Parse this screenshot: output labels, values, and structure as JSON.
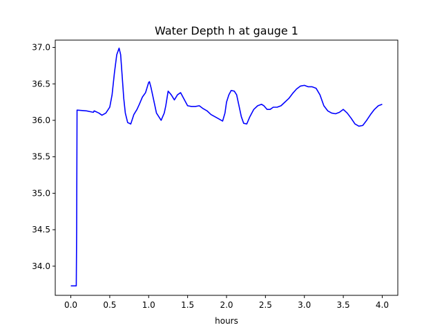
{
  "chart_data": {
    "type": "line",
    "title": "Water Depth h at gauge 1",
    "xlabel": "hours",
    "ylabel": "",
    "xlim": [
      -0.2,
      4.2
    ],
    "ylim": [
      33.6,
      37.1
    ],
    "xticks": [
      0.0,
      0.5,
      1.0,
      1.5,
      2.0,
      2.5,
      3.0,
      3.5,
      4.0
    ],
    "xtick_labels": [
      "0.0",
      "0.5",
      "1.0",
      "1.5",
      "2.0",
      "2.5",
      "3.0",
      "3.5",
      "4.0"
    ],
    "yticks": [
      34.0,
      34.5,
      35.0,
      35.5,
      36.0,
      36.5,
      37.0
    ],
    "ytick_labels": [
      "34.0",
      "34.5",
      "35.0",
      "35.5",
      "36.0",
      "36.5",
      "37.0"
    ],
    "grid": false,
    "series": [
      {
        "name": "",
        "color": "#0000ff",
        "x": [
          0.0,
          0.07,
          0.075,
          0.08,
          0.2,
          0.29,
          0.3,
          0.36,
          0.4,
          0.45,
          0.5,
          0.53,
          0.56,
          0.59,
          0.62,
          0.64,
          0.66,
          0.68,
          0.7,
          0.73,
          0.77,
          0.81,
          0.85,
          0.88,
          0.92,
          0.96,
          1.0,
          1.01,
          1.03,
          1.06,
          1.1,
          1.13,
          1.16,
          1.2,
          1.22,
          1.25,
          1.29,
          1.33,
          1.37,
          1.41,
          1.45,
          1.5,
          1.55,
          1.6,
          1.65,
          1.7,
          1.75,
          1.8,
          1.85,
          1.9,
          1.95,
          1.98,
          2.0,
          2.03,
          2.06,
          2.1,
          2.13,
          2.16,
          2.19,
          2.22,
          2.26,
          2.3,
          2.35,
          2.4,
          2.45,
          2.48,
          2.52,
          2.56,
          2.6,
          2.65,
          2.7,
          2.75,
          2.8,
          2.85,
          2.9,
          2.95,
          3.0,
          3.05,
          3.1,
          3.15,
          3.2,
          3.25,
          3.3,
          3.35,
          3.4,
          3.45,
          3.5,
          3.55,
          3.6,
          3.65,
          3.7,
          3.75,
          3.8,
          3.85,
          3.9,
          3.95,
          4.0
        ],
        "y": [
          33.73,
          33.73,
          34.5,
          36.14,
          36.13,
          36.11,
          36.13,
          36.1,
          36.07,
          36.1,
          36.18,
          36.35,
          36.65,
          36.9,
          36.99,
          36.9,
          36.6,
          36.3,
          36.1,
          35.97,
          35.95,
          36.08,
          36.15,
          36.22,
          36.32,
          36.38,
          36.52,
          36.53,
          36.45,
          36.3,
          36.1,
          36.05,
          36.0,
          36.1,
          36.2,
          36.4,
          36.35,
          36.28,
          36.35,
          36.38,
          36.3,
          36.2,
          36.19,
          36.19,
          36.2,
          36.16,
          36.13,
          36.08,
          36.05,
          36.02,
          35.99,
          36.1,
          36.25,
          36.35,
          36.41,
          36.4,
          36.35,
          36.2,
          36.05,
          35.96,
          35.95,
          36.05,
          36.15,
          36.2,
          36.22,
          36.2,
          36.15,
          36.15,
          36.18,
          36.18,
          36.2,
          36.25,
          36.3,
          36.37,
          36.43,
          36.47,
          36.48,
          36.46,
          36.46,
          36.44,
          36.35,
          36.2,
          36.13,
          36.1,
          36.09,
          36.11,
          36.15,
          36.1,
          36.03,
          35.95,
          35.92,
          35.93,
          36.0,
          36.08,
          36.15,
          36.2,
          36.22
        ]
      }
    ]
  }
}
